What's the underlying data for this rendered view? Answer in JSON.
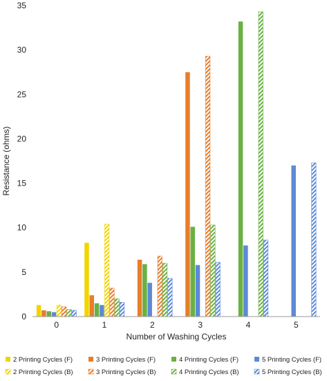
{
  "chart_data": {
    "type": "bar",
    "xlabel": "Number of Washing Cycles",
    "ylabel": "Resistance (ohms)",
    "ylim": [
      0,
      35
    ],
    "yticks": [
      0,
      5,
      10,
      15,
      20,
      25,
      30,
      35
    ],
    "categories": [
      "0",
      "1",
      "2",
      "3",
      "4",
      "5"
    ],
    "grid": false,
    "legend_position": "bottom",
    "series": [
      {
        "name": "2 Printing Cycles (F)",
        "color": "#f2d400",
        "pattern": "solid",
        "values": [
          1.3,
          8.3,
          null,
          null,
          null,
          null
        ]
      },
      {
        "name": "2 Printing Cycles (B)",
        "color": "#f2d400",
        "pattern": "hatched",
        "values": [
          1.3,
          10.4,
          null,
          null,
          null,
          null
        ]
      },
      {
        "name": "3 Printing Cycles (F)",
        "color": "#e87d2a",
        "pattern": "solid",
        "values": [
          0.7,
          2.4,
          6.4,
          27.5,
          null,
          null
        ]
      },
      {
        "name": "3 Printing Cycles (B)",
        "color": "#e87d2a",
        "pattern": "hatched",
        "values": [
          1.1,
          3.2,
          6.8,
          29.3,
          null,
          null
        ]
      },
      {
        "name": "4 Printing Cycles (F)",
        "color": "#6ab043",
        "pattern": "solid",
        "values": [
          0.6,
          1.5,
          5.9,
          10.1,
          33.2,
          null
        ]
      },
      {
        "name": "4 Printing Cycles (B)",
        "color": "#6ab043",
        "pattern": "hatched",
        "values": [
          0.8,
          2.0,
          6.0,
          10.3,
          34.3,
          null
        ]
      },
      {
        "name": "5 Printing Cycles (F)",
        "color": "#5b8ad6",
        "pattern": "solid",
        "values": [
          0.5,
          1.3,
          3.8,
          5.8,
          8.0,
          17.0
        ]
      },
      {
        "name": "5 Printing Cycles (B)",
        "color": "#5b8ad6",
        "pattern": "hatched",
        "values": [
          0.7,
          1.6,
          4.3,
          6.1,
          8.6,
          17.3
        ]
      }
    ]
  }
}
